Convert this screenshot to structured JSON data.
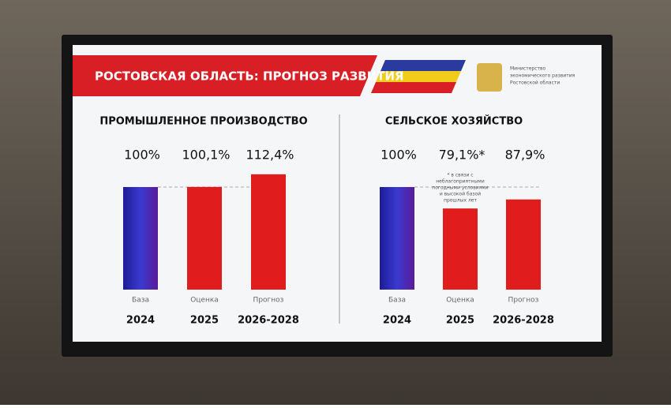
{
  "header": {
    "title": "РОСТОВСКАЯ ОБЛАСТЬ: ПРОГНОЗ РАЗВИТИЯ",
    "ministry": [
      "Министерство",
      "экономического развития",
      "Ростовской области"
    ]
  },
  "chart_data": [
    {
      "type": "bar",
      "title": "ПРОМЫШЛЕННОЕ ПРОИЗВОДСТВО",
      "categories": [
        "База",
        "Оценка",
        "Прогноз"
      ],
      "periods": [
        "2024",
        "2025",
        "2026-2028"
      ],
      "values": [
        100,
        100.1,
        112.4
      ],
      "value_labels": [
        "100%",
        "100,1%",
        "112,4%"
      ],
      "colors": [
        "#2a2aa8",
        "#e01c1c",
        "#e01c1c"
      ],
      "ylim": [
        0,
        130
      ],
      "reference_value": 100
    },
    {
      "type": "bar",
      "title": "СЕЛЬСКОЕ ХОЗЯЙСТВО",
      "categories": [
        "База",
        "Оценка",
        "Прогноз"
      ],
      "periods": [
        "2024",
        "2025",
        "2026-2028"
      ],
      "values": [
        100,
        79.1,
        87.9
      ],
      "value_labels": [
        "100%",
        "79,1%*",
        "87,9%"
      ],
      "colors": [
        "#2a2aa8",
        "#e01c1c",
        "#e01c1c"
      ],
      "ylim": [
        0,
        130
      ],
      "reference_value": 100,
      "annotation_lines": [
        "* в связи с",
        "неблагоприятными",
        "погодными условиями",
        "и высокой базой",
        "прошлых лет"
      ]
    }
  ]
}
